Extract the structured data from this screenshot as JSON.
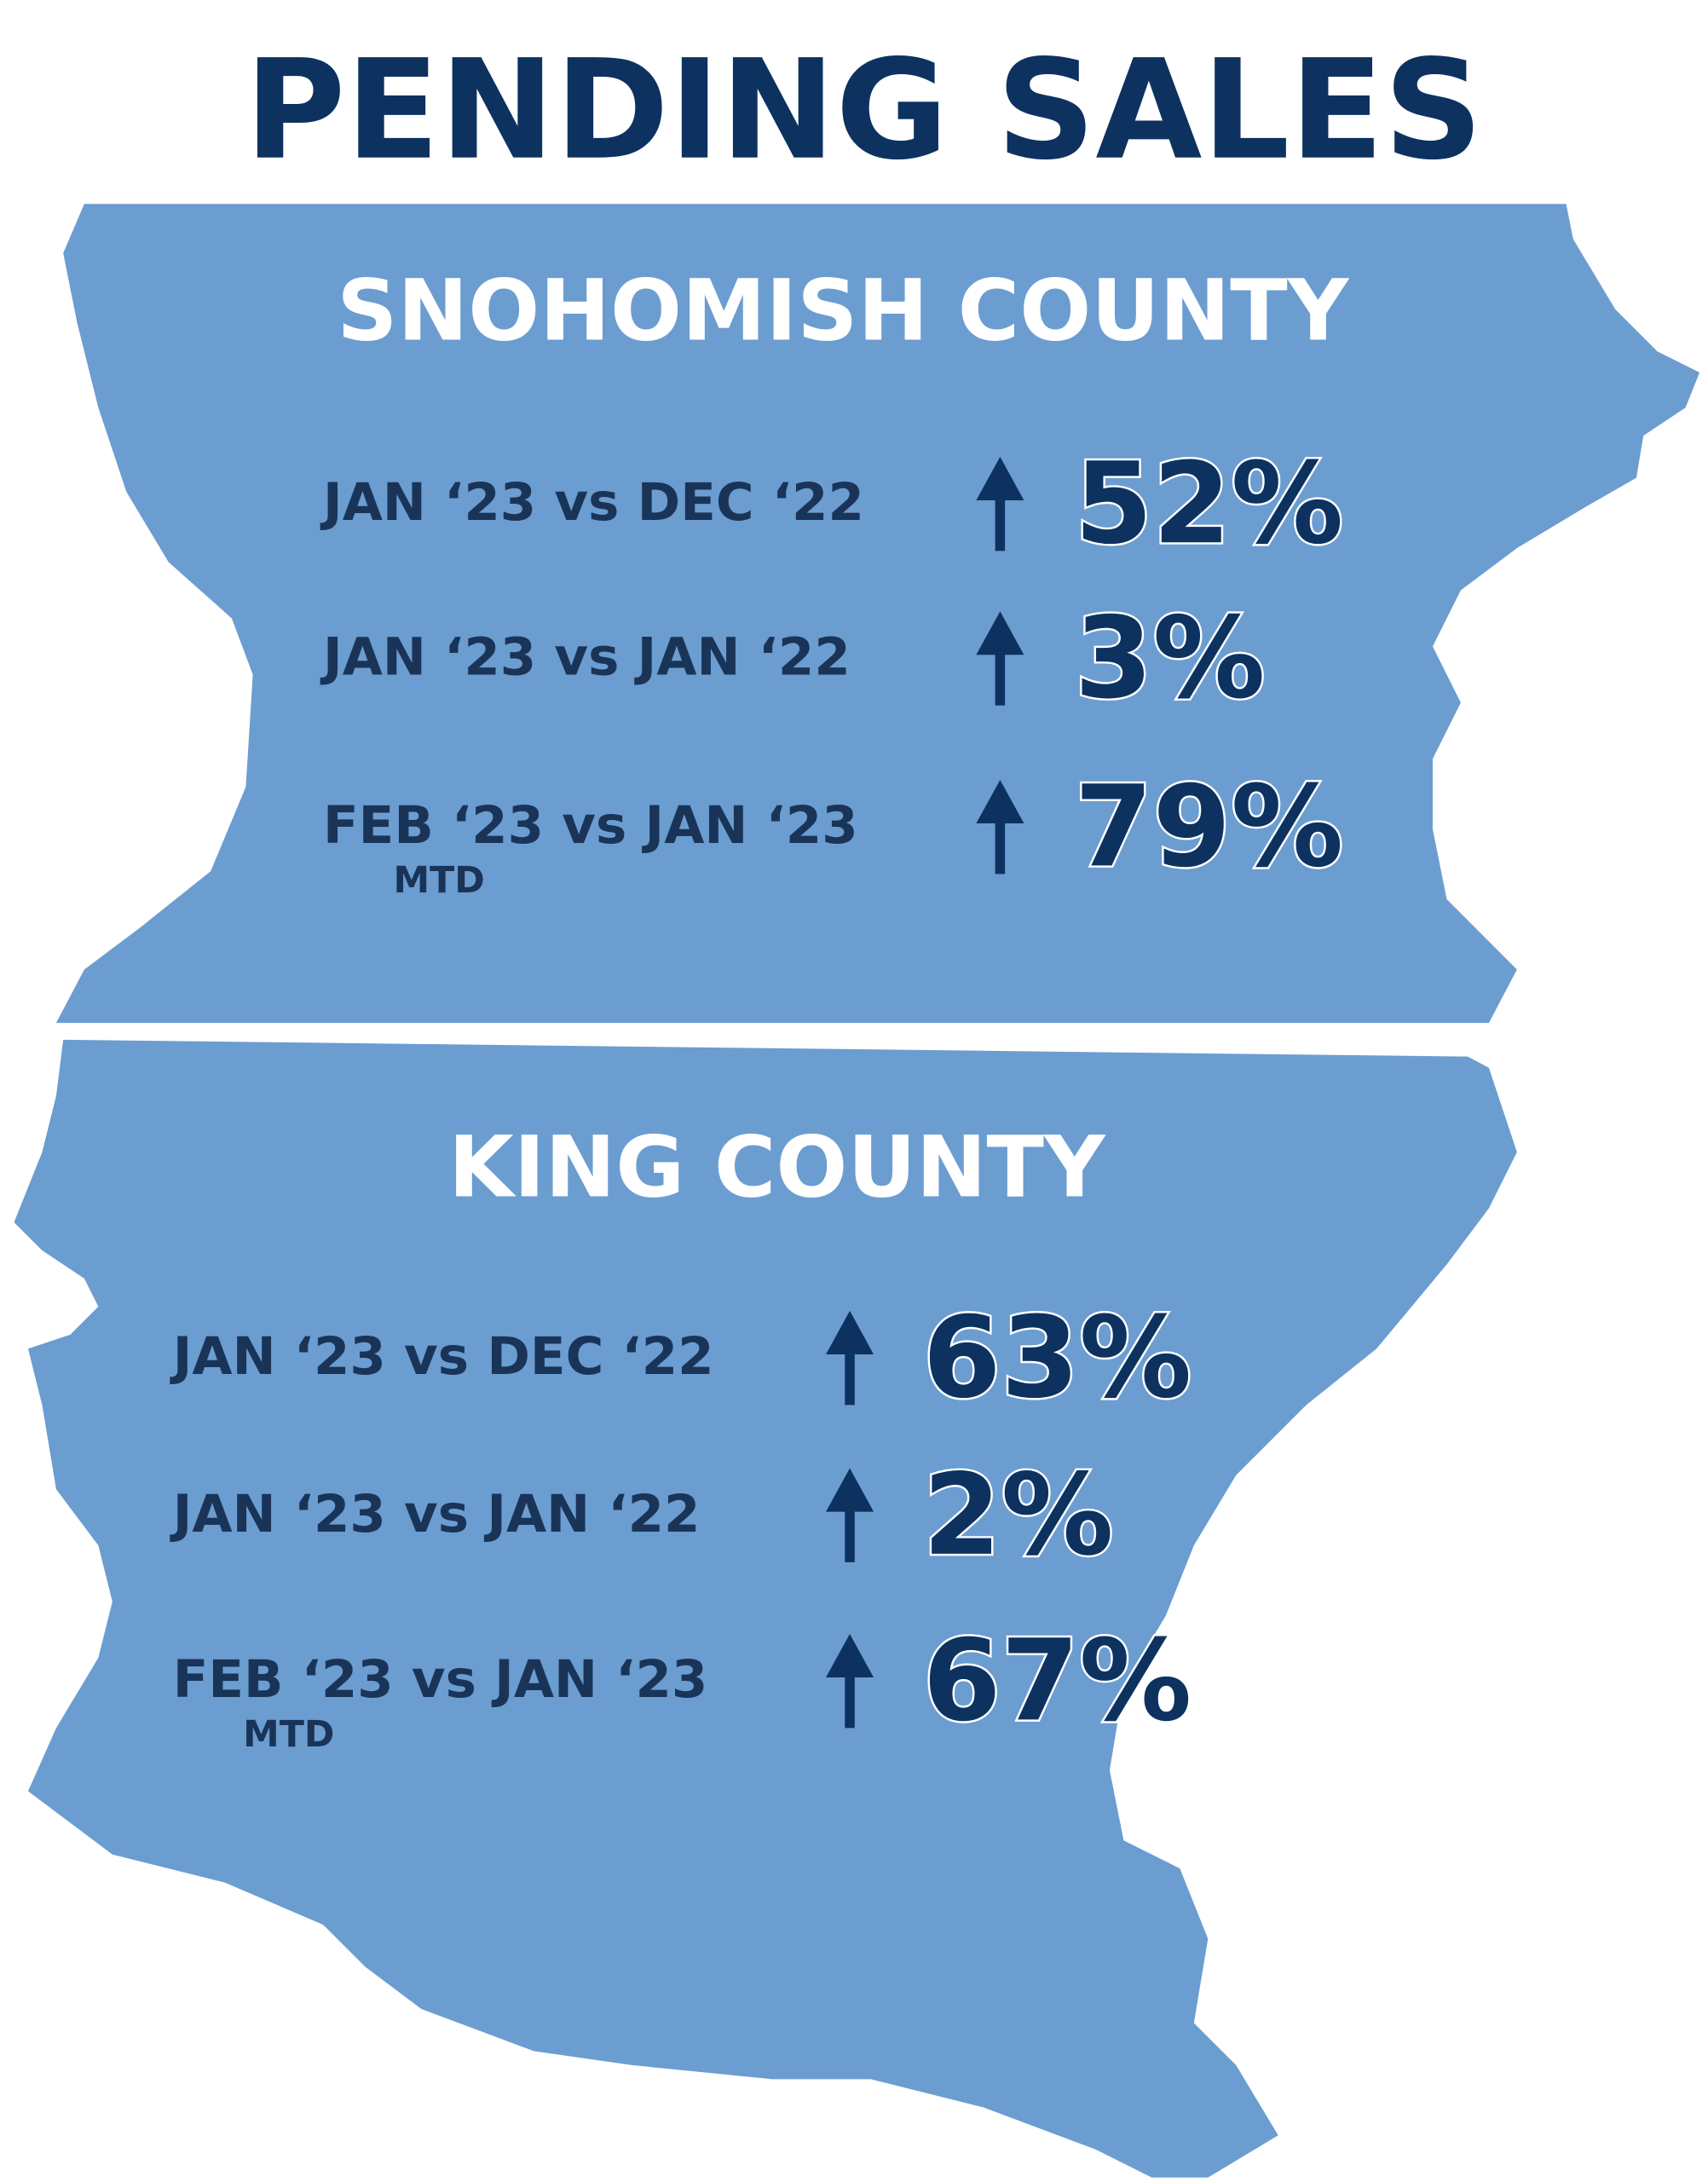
{
  "title": "PENDING SALES",
  "sections": [
    {
      "name": "SNOHOMISH COUNTY",
      "rows": [
        {
          "label": "JAN ‘23 vs DEC ‘22",
          "change": "52%"
        },
        {
          "label": "JAN ‘23 vs JAN ‘22",
          "change": "3%"
        },
        {
          "label": "FEB ‘23 vs JAN ‘23",
          "note": "MTD",
          "change": "79%"
        }
      ]
    },
    {
      "name": "KING COUNTY",
      "rows": [
        {
          "label": "JAN ‘23 vs DEC ‘22",
          "change": "63%"
        },
        {
          "label": "JAN ‘23 vs JAN ‘22",
          "change": "2%"
        },
        {
          "label": "FEB ‘23 vs JAN ‘23",
          "note": "MTD",
          "change": "67%"
        }
      ]
    }
  ]
}
